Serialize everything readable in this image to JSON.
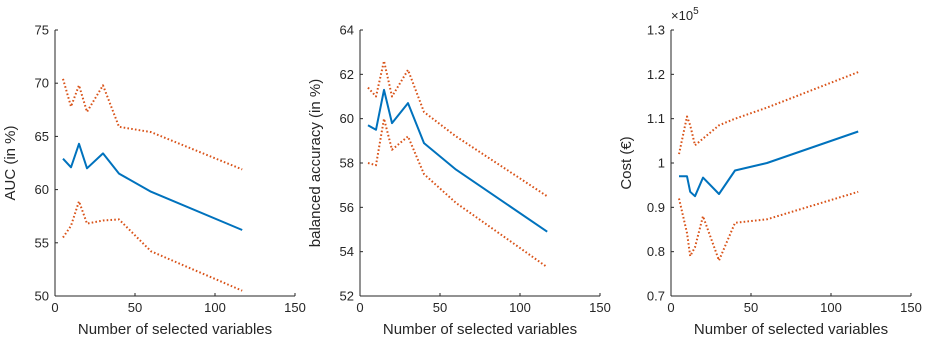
{
  "colors": {
    "mean": "#0072BD",
    "bounds": "#D95319",
    "axis": "#262626"
  },
  "chart_data": [
    {
      "type": "line",
      "xlabel": "Number of selected variables",
      "ylabel": "AUC (in %)",
      "xlim": [
        0,
        150
      ],
      "ylim": [
        50,
        75
      ],
      "xticks": [
        0,
        50,
        100,
        150
      ],
      "yticks": [
        50,
        55,
        60,
        65,
        70,
        75
      ],
      "x": [
        5,
        10,
        15,
        20,
        30,
        40,
        60,
        117
      ],
      "series": [
        {
          "role": "mean",
          "style": "solid",
          "values": [
            62.9,
            62.1,
            64.3,
            62.0,
            63.4,
            61.5,
            59.8,
            56.2
          ]
        },
        {
          "role": "upper",
          "style": "dotted",
          "values": [
            70.4,
            67.8,
            69.8,
            67.3,
            69.8,
            65.9,
            65.4,
            61.9
          ]
        },
        {
          "role": "lower",
          "style": "dotted",
          "values": [
            55.5,
            56.6,
            58.9,
            56.8,
            57.1,
            57.2,
            54.2,
            50.5
          ]
        }
      ]
    },
    {
      "type": "line",
      "xlabel": "Number of selected variables",
      "ylabel": "balanced accuracy (in %)",
      "xlim": [
        0,
        150
      ],
      "ylim": [
        52,
        64
      ],
      "xticks": [
        0,
        50,
        100,
        150
      ],
      "yticks": [
        52,
        54,
        56,
        58,
        60,
        62,
        64
      ],
      "x": [
        5,
        10,
        15,
        20,
        30,
        40,
        60,
        117
      ],
      "series": [
        {
          "role": "mean",
          "style": "solid",
          "values": [
            59.7,
            59.5,
            61.3,
            59.8,
            60.7,
            58.9,
            57.7,
            54.9
          ]
        },
        {
          "role": "upper",
          "style": "dotted",
          "values": [
            61.4,
            61.0,
            62.6,
            61.0,
            62.2,
            60.3,
            59.2,
            56.5
          ]
        },
        {
          "role": "lower",
          "style": "dotted",
          "values": [
            58.0,
            57.9,
            60.0,
            58.6,
            59.2,
            57.5,
            56.2,
            53.3
          ]
        }
      ]
    },
    {
      "type": "line",
      "xlabel": "Number of selected variables",
      "ylabel": "Cost (€)",
      "y_exponent": "×10",
      "y_exponent_power": "5",
      "xlim": [
        0,
        150
      ],
      "ylim": [
        0.7,
        1.3
      ],
      "xticks": [
        0,
        50,
        100,
        150
      ],
      "yticks": [
        0.7,
        0.8,
        0.9,
        1,
        1.1,
        1.2,
        1.3
      ],
      "ytick_labels": [
        "0.7",
        "0.8",
        "0.9",
        "1",
        "1.1",
        "1.2",
        "1.3"
      ],
      "x": [
        5,
        10,
        12,
        15,
        20,
        30,
        40,
        60,
        117
      ],
      "series": [
        {
          "role": "mean",
          "style": "solid",
          "values": [
            0.97,
            0.97,
            0.935,
            0.925,
            0.967,
            0.93,
            0.983,
            1.0,
            1.071
          ]
        },
        {
          "role": "upper",
          "style": "dotted",
          "values": [
            1.02,
            1.105,
            1.085,
            1.04,
            1.055,
            1.085,
            1.1,
            1.125,
            1.205
          ]
        },
        {
          "role": "lower",
          "style": "dotted",
          "values": [
            0.92,
            0.842,
            0.79,
            0.81,
            0.88,
            0.78,
            0.865,
            0.873,
            0.935
          ]
        }
      ]
    }
  ]
}
